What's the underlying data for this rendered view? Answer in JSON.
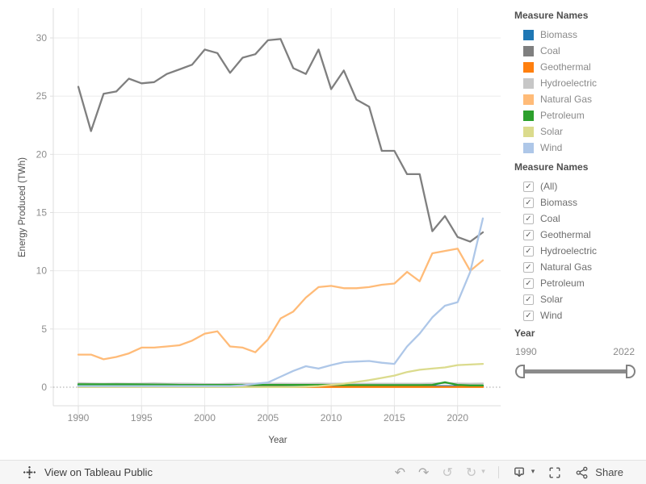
{
  "chart_data": {
    "type": "line",
    "title": "",
    "xlabel": "Year",
    "ylabel": "Energy Produced (TWh)",
    "x_ticks": [
      1990,
      1995,
      2000,
      2005,
      2010,
      2015,
      2020
    ],
    "y_ticks": [
      0,
      5,
      10,
      15,
      20,
      25,
      30
    ],
    "xlim": [
      1990,
      2022
    ],
    "ylim": [
      0,
      30
    ],
    "grid": true,
    "legend_position": "right",
    "x": [
      1990,
      1991,
      1992,
      1993,
      1994,
      1995,
      1996,
      1997,
      1998,
      1999,
      2000,
      2001,
      2002,
      2003,
      2004,
      2005,
      2006,
      2007,
      2008,
      2009,
      2010,
      2011,
      2012,
      2013,
      2014,
      2015,
      2016,
      2017,
      2018,
      2019,
      2020,
      2021,
      2022
    ],
    "series": [
      {
        "name": "Biomass",
        "color": "#1f77b4",
        "values": [
          0.15,
          0.15,
          0.15,
          0.16,
          0.16,
          0.15,
          0.15,
          0.14,
          0.14,
          0.13,
          0.13,
          0.12,
          0.12,
          0.12,
          0.12,
          0.12,
          0.12,
          0.12,
          0.12,
          0.12,
          0.12,
          0.12,
          0.12,
          0.12,
          0.11,
          0.11,
          0.1,
          0.1,
          0.1,
          0.1,
          0.09,
          0.09,
          0.09
        ]
      },
      {
        "name": "Coal",
        "color": "#7f7f7f",
        "values": [
          25.8,
          22.0,
          25.2,
          25.4,
          26.5,
          26.1,
          26.2,
          26.9,
          27.3,
          27.7,
          29.0,
          28.7,
          27.0,
          28.3,
          28.6,
          29.8,
          29.9,
          27.4,
          26.9,
          29.0,
          25.6,
          27.2,
          24.7,
          24.1,
          20.3,
          20.3,
          18.3,
          18.3,
          13.4,
          14.7,
          12.9,
          12.5,
          13.3
        ]
      },
      {
        "name": "Geothermal",
        "color": "#ff7f0e",
        "values": [
          0.02,
          0.02,
          0.02,
          0.02,
          0.02,
          0.02,
          0.02,
          0.02,
          0.02,
          0.02,
          0.02,
          0.02,
          0.02,
          0.02,
          0.02,
          0.02,
          0.02,
          0.02,
          0.02,
          0.02,
          0.02,
          0.02,
          0.02,
          0.02,
          0.02,
          0.02,
          0.02,
          0.02,
          0.02,
          0.02,
          0.02,
          0.02,
          0.02
        ]
      },
      {
        "name": "Hydroelectric",
        "color": "#c7c7c7",
        "values": [
          0.35,
          0.32,
          0.3,
          0.32,
          0.3,
          0.31,
          0.33,
          0.3,
          0.31,
          0.3,
          0.28,
          0.26,
          0.3,
          0.31,
          0.3,
          0.3,
          0.31,
          0.3,
          0.3,
          0.32,
          0.3,
          0.31,
          0.28,
          0.3,
          0.3,
          0.3,
          0.3,
          0.3,
          0.32,
          0.35,
          0.32,
          0.3,
          0.32
        ]
      },
      {
        "name": "Natural Gas",
        "color": "#ffbb78",
        "values": [
          2.8,
          2.8,
          2.4,
          2.6,
          2.9,
          3.4,
          3.4,
          3.5,
          3.6,
          4.0,
          4.6,
          4.8,
          3.5,
          3.4,
          3.0,
          4.1,
          5.9,
          6.5,
          7.7,
          8.6,
          8.7,
          8.5,
          8.5,
          8.6,
          8.8,
          8.9,
          9.9,
          9.1,
          11.5,
          11.7,
          11.9,
          10.0,
          10.9
        ]
      },
      {
        "name": "Petroleum",
        "color": "#2ca02c",
        "values": [
          0.25,
          0.25,
          0.25,
          0.25,
          0.25,
          0.24,
          0.22,
          0.22,
          0.2,
          0.2,
          0.2,
          0.2,
          0.2,
          0.2,
          0.2,
          0.2,
          0.2,
          0.2,
          0.2,
          0.2,
          0.2,
          0.18,
          0.18,
          0.18,
          0.18,
          0.18,
          0.18,
          0.18,
          0.2,
          0.42,
          0.2,
          0.15,
          0.15
        ]
      },
      {
        "name": "Solar",
        "color": "#dbdb8d",
        "values": [
          0.01,
          0.01,
          0.01,
          0.01,
          0.01,
          0.01,
          0.01,
          0.01,
          0.01,
          0.01,
          0.01,
          0.01,
          0.01,
          0.01,
          0.01,
          0.01,
          0.01,
          0.02,
          0.05,
          0.1,
          0.2,
          0.3,
          0.45,
          0.6,
          0.8,
          1.0,
          1.3,
          1.5,
          1.6,
          1.7,
          1.9,
          1.95,
          2.0
        ]
      },
      {
        "name": "Wind",
        "color": "#aec7e8",
        "values": [
          0.1,
          0.1,
          0.1,
          0.1,
          0.1,
          0.1,
          0.1,
          0.1,
          0.1,
          0.1,
          0.1,
          0.1,
          0.1,
          0.15,
          0.3,
          0.4,
          0.9,
          1.4,
          1.8,
          1.6,
          1.9,
          2.15,
          2.2,
          2.25,
          2.1,
          2.0,
          3.5,
          4.6,
          6.0,
          7.0,
          7.3,
          9.9,
          14.5
        ]
      }
    ]
  },
  "legend": {
    "title": "Measure Names"
  },
  "filters": {
    "title": "Measure Names",
    "check_glyph": "✓",
    "items": [
      {
        "label": "(All)",
        "checked": true
      },
      {
        "label": "Biomass",
        "checked": true
      },
      {
        "label": "Coal",
        "checked": true
      },
      {
        "label": "Geothermal",
        "checked": true
      },
      {
        "label": "Hydroelectric",
        "checked": true
      },
      {
        "label": "Natural Gas",
        "checked": true
      },
      {
        "label": "Petroleum",
        "checked": true
      },
      {
        "label": "Solar",
        "checked": true
      },
      {
        "label": "Wind",
        "checked": true
      }
    ]
  },
  "year_slider": {
    "title": "Year",
    "start_label": "1990",
    "end_label": "2022"
  },
  "toolbar": {
    "view_on_text": "View on Tableau Public",
    "share_label": "Share",
    "undo_glyph": "↶",
    "redo_glyph": "↷",
    "revert_glyph": "↺",
    "refresh_glyph": "↻",
    "caret_glyph": "▾"
  },
  "colors": {
    "grid": "#ebebeb",
    "axis_rule": "#dedede",
    "tick_label": "#8d8d8d",
    "axis_title": "#4f4f4f",
    "zero_line": "#a3a3a3"
  }
}
